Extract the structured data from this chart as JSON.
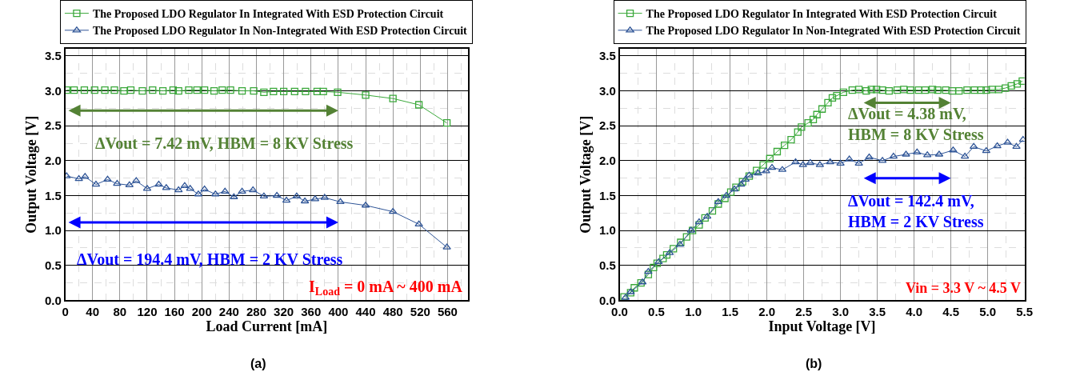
{
  "chart_data": [
    {
      "type": "line",
      "xlabel": "Load Current [mA]",
      "ylabel": "Output Voltage [V]",
      "xlim": [
        0,
        590
      ],
      "ylim": [
        0,
        3.6
      ],
      "xticks": [
        0,
        40,
        80,
        120,
        160,
        200,
        240,
        280,
        320,
        360,
        400,
        440,
        480,
        520,
        560
      ],
      "yticks": [
        {
          "value": 0,
          "label": "0.0"
        },
        {
          "value": 0.5,
          "label": "0.5"
        },
        {
          "value": 1,
          "label": "1.0"
        },
        {
          "value": 1.5,
          "label": "1.5"
        },
        {
          "value": 2,
          "label": "2.0"
        },
        {
          "value": 2.5,
          "label": "2.5"
        },
        {
          "value": 3,
          "label": "3.0"
        },
        {
          "value": 3.5,
          "label": "3.5"
        }
      ],
      "grid": true,
      "legend": "top",
      "series": [
        {
          "name": "The Proposed LDO Regulator In Integrated With ESD Protection Circuit",
          "color": "#3aa83a",
          "marker": "square",
          "x": [
            2,
            13,
            28,
            43,
            58,
            72,
            86,
            96,
            113,
            128,
            143,
            158,
            166,
            181,
            193,
            204,
            218,
            230,
            242,
            259,
            276,
            291,
            305,
            320,
            336,
            352,
            369,
            378,
            399,
            440,
            480,
            518,
            559
          ],
          "values": [
            3.01,
            3.01,
            3.01,
            3.01,
            3.01,
            3.01,
            3.0,
            3.01,
            3.0,
            3.01,
            3.0,
            3.01,
            3.0,
            3.01,
            3.01,
            3.01,
            3.0,
            3.01,
            3.01,
            3.0,
            3.0,
            2.98,
            2.99,
            2.99,
            2.99,
            2.99,
            2.99,
            2.99,
            2.98,
            2.94,
            2.89,
            2.8,
            2.54
          ]
        },
        {
          "name": "The Proposed LDO Regulator In Non-Integrated With ESD Protection Circuit",
          "color": "#2f5597",
          "marker": "triangle",
          "x": [
            2,
            20,
            29,
            45,
            62,
            76,
            94,
            104,
            120,
            137,
            148,
            166,
            175,
            183,
            195,
            204,
            220,
            234,
            247,
            259,
            275,
            291,
            310,
            324,
            339,
            351,
            366,
            380,
            403,
            440,
            480,
            518,
            559
          ],
          "values": [
            1.78,
            1.74,
            1.77,
            1.66,
            1.73,
            1.67,
            1.65,
            1.71,
            1.6,
            1.66,
            1.61,
            1.58,
            1.64,
            1.6,
            1.52,
            1.59,
            1.52,
            1.56,
            1.48,
            1.56,
            1.58,
            1.49,
            1.5,
            1.43,
            1.49,
            1.42,
            1.45,
            1.47,
            1.41,
            1.36,
            1.27,
            1.09,
            0.76
          ]
        }
      ],
      "annotations": [
        "ΔVout = 7.42 mV, HBM = 8 KV Stress",
        "ΔVout = 194.4 mV, HBM = 2 KV Stress",
        "I$_{Load}$ = 0 mA ~ 400 mA",
        "(a)"
      ]
    },
    {
      "type": "line",
      "xlabel": "Input Voltage [V]",
      "ylabel": "Output Voltage [V]",
      "xlim": [
        0,
        5.5
      ],
      "ylim": [
        0,
        3.6
      ],
      "xticks": [
        {
          "value": 0,
          "label": "0.0"
        },
        {
          "value": 0.5,
          "label": "0.5"
        },
        {
          "value": 1,
          "label": "1.0"
        },
        {
          "value": 1.5,
          "label": "1.5"
        },
        {
          "value": 2,
          "label": "2.0"
        },
        {
          "value": 2.5,
          "label": "2.5"
        },
        {
          "value": 3,
          "label": "3.0"
        },
        {
          "value": 3.5,
          "label": "3.5"
        },
        {
          "value": 4,
          "label": "4.0"
        },
        {
          "value": 4.5,
          "label": "4.5"
        },
        {
          "value": 5,
          "label": "5.0"
        },
        {
          "value": 5.5,
          "label": "5.5"
        }
      ],
      "yticks": [
        {
          "value": 0,
          "label": "0.0"
        },
        {
          "value": 0.5,
          "label": "0.5"
        },
        {
          "value": 1,
          "label": "1.0"
        },
        {
          "value": 1.5,
          "label": "1.5"
        },
        {
          "value": 2,
          "label": "2.0"
        },
        {
          "value": 2.5,
          "label": "2.5"
        },
        {
          "value": 3,
          "label": "3.0"
        },
        {
          "value": 3.5,
          "label": "3.5"
        }
      ],
      "grid": true,
      "legend": "top",
      "series": [
        {
          "name": "The Proposed LDO Regulator In Integrated With ESD Protection Circuit",
          "color": "#3aa83a",
          "marker": "square",
          "x": [
            0.06,
            0.15,
            0.2,
            0.29,
            0.39,
            0.46,
            0.51,
            0.59,
            0.64,
            0.73,
            0.83,
            0.91,
            0.99,
            1.08,
            1.16,
            1.26,
            1.34,
            1.43,
            1.51,
            1.58,
            1.67,
            1.76,
            1.86,
            1.95,
            2.04,
            2.14,
            2.24,
            2.33,
            2.42,
            2.47,
            2.56,
            2.63,
            2.68,
            2.75,
            2.83,
            2.89,
            2.95,
            3.04,
            3.16,
            3.25,
            3.35,
            3.42,
            3.49,
            3.57,
            3.66,
            3.77,
            3.86,
            3.95,
            4.06,
            4.15,
            4.25,
            4.32,
            4.43,
            4.52,
            4.61,
            4.72,
            4.82,
            4.91,
            4.98,
            5.06,
            5.15,
            5.24,
            5.32,
            5.4,
            5.47
          ],
          "values": [
            0.05,
            0.11,
            0.18,
            0.25,
            0.37,
            0.47,
            0.53,
            0.6,
            0.65,
            0.74,
            0.83,
            0.91,
            1.0,
            1.08,
            1.18,
            1.28,
            1.38,
            1.46,
            1.55,
            1.62,
            1.7,
            1.78,
            1.86,
            1.94,
            2.03,
            2.13,
            2.22,
            2.3,
            2.41,
            2.48,
            2.54,
            2.59,
            2.66,
            2.74,
            2.83,
            2.9,
            2.93,
            2.98,
            3.01,
            3.02,
            3.0,
            3.02,
            3.02,
            3.01,
            3.0,
            3.01,
            3.02,
            3.01,
            3.01,
            3.01,
            3.02,
            3.01,
            3.01,
            3.0,
            3.0,
            3.01,
            3.01,
            3.01,
            3.01,
            3.02,
            3.02,
            3.04,
            3.07,
            3.1,
            3.14
          ]
        },
        {
          "name": "The Proposed LDO Regulator In Non-Integrated With ESD Protection Circuit",
          "color": "#2f5597",
          "marker": "triangle",
          "x": [
            0.08,
            0.15,
            0.31,
            0.39,
            0.53,
            0.68,
            0.82,
            0.97,
            1.08,
            1.19,
            1.34,
            1.45,
            1.56,
            1.65,
            1.71,
            1.76,
            1.88,
            1.99,
            2.07,
            2.21,
            2.39,
            2.49,
            2.59,
            2.72,
            2.86,
            3.0,
            3.12,
            3.25,
            3.39,
            3.57,
            3.72,
            3.89,
            4.04,
            4.18,
            4.34,
            4.53,
            4.69,
            4.81,
            4.98,
            5.13,
            5.27,
            5.39,
            5.48
          ],
          "values": [
            0.04,
            0.12,
            0.26,
            0.41,
            0.55,
            0.68,
            0.8,
            1.0,
            1.12,
            1.2,
            1.41,
            1.5,
            1.59,
            1.66,
            1.73,
            1.79,
            1.82,
            1.85,
            1.9,
            1.87,
            1.98,
            1.94,
            1.97,
            1.94,
            1.98,
            1.96,
            2.02,
            1.96,
            2.05,
            2.0,
            2.06,
            2.09,
            2.12,
            2.08,
            2.09,
            2.15,
            2.06,
            2.2,
            2.14,
            2.21,
            2.26,
            2.2,
            2.3
          ]
        }
      ],
      "annotations": [
        "ΔVout = 4.38 mV,\nHBM = 8 KV Stress",
        "ΔVout = 142.4 mV,\nHBM = 2 KV Stress",
        "Vin = 3.3 V ~ 4.5 V",
        "(b)"
      ]
    }
  ]
}
